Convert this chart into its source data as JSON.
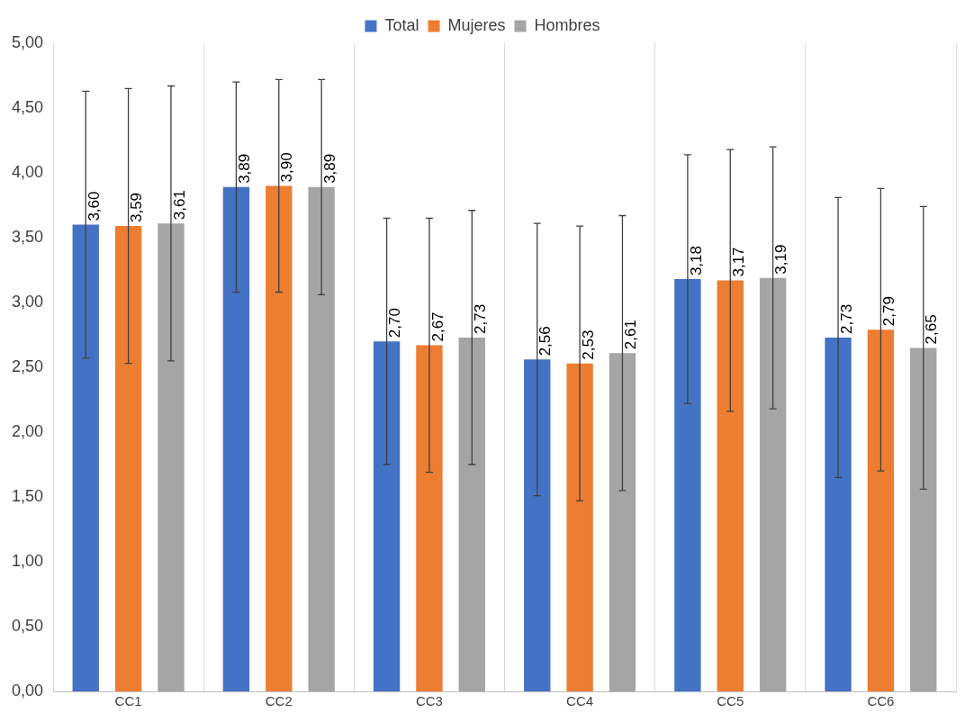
{
  "chart_data": {
    "type": "bar",
    "categories": [
      "CC1",
      "CC2",
      "CC3",
      "CC4",
      "CC5",
      "CC6"
    ],
    "series": [
      {
        "name": "Total",
        "color": "#4472c4",
        "values": [
          3.6,
          3.89,
          2.7,
          2.56,
          3.18,
          2.73
        ],
        "errors": [
          1.03,
          0.81,
          0.95,
          1.05,
          0.96,
          1.08
        ],
        "value_labels": [
          "3,60",
          "3,89",
          "2,70",
          "2,56",
          "3,18",
          "2,73"
        ]
      },
      {
        "name": "Mujeres",
        "color": "#ed7d31",
        "values": [
          3.59,
          3.9,
          2.67,
          2.53,
          3.17,
          2.79
        ],
        "errors": [
          1.06,
          0.82,
          0.98,
          1.06,
          1.01,
          1.09
        ],
        "value_labels": [
          "3,59",
          "3,90",
          "2,67",
          "2,53",
          "3,17",
          "2,79"
        ]
      },
      {
        "name": "Hombres",
        "color": "#a5a5a5",
        "values": [
          3.61,
          3.89,
          2.73,
          2.61,
          3.19,
          2.65
        ],
        "errors": [
          1.06,
          0.83,
          0.98,
          1.06,
          1.01,
          1.09
        ],
        "value_labels": [
          "3,61",
          "3,89",
          "2,73",
          "2,61",
          "3,19",
          "2,65"
        ]
      }
    ],
    "ylim": [
      0,
      5
    ],
    "yticks": [
      {
        "value": 0,
        "label": "0,00"
      },
      {
        "value": 0.5,
        "label": "0,50"
      },
      {
        "value": 1,
        "label": "1,00"
      },
      {
        "value": 1.5,
        "label": "1,50"
      },
      {
        "value": 2,
        "label": "2,00"
      },
      {
        "value": 2.5,
        "label": "2,50"
      },
      {
        "value": 3,
        "label": "3,00"
      },
      {
        "value": 3.5,
        "label": "3,50"
      },
      {
        "value": 4,
        "label": "4,00"
      },
      {
        "value": 4.5,
        "label": "4,50"
      },
      {
        "value": 5,
        "label": "5,00"
      }
    ],
    "grid": "x",
    "legend": "top"
  }
}
